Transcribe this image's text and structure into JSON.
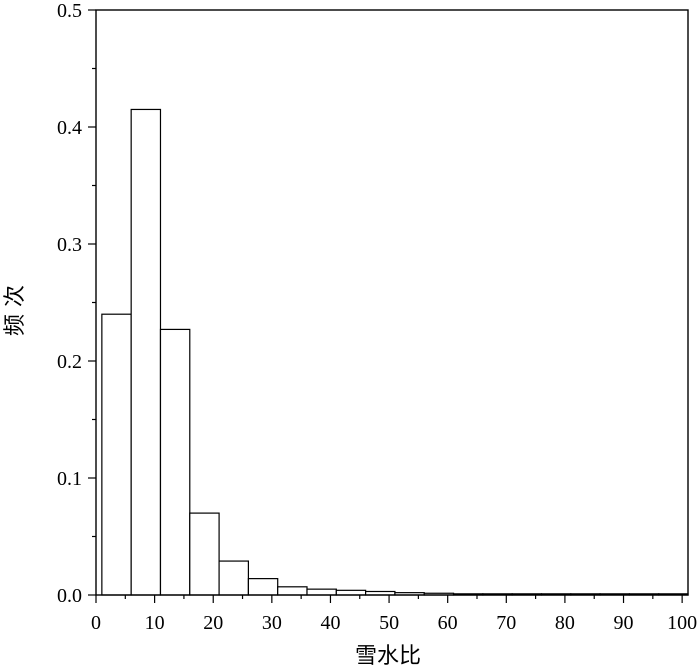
{
  "chart_data": {
    "type": "bar",
    "xlabel": "雪水比",
    "ylabel": "频 次",
    "xlim": [
      0,
      101
    ],
    "ylim": [
      0,
      0.5
    ],
    "grid": false,
    "xticks": [
      "0",
      "10",
      "20",
      "30",
      "40",
      "50",
      "60",
      "70",
      "80",
      "90",
      "100"
    ],
    "yticks": [
      "0.0",
      "0.1",
      "0.2",
      "0.3",
      "0.4",
      "0.5"
    ],
    "bins": [
      {
        "start": 1,
        "end": 6,
        "value": 0.24
      },
      {
        "start": 6,
        "end": 11,
        "value": 0.415
      },
      {
        "start": 11,
        "end": 16,
        "value": 0.227
      },
      {
        "start": 16,
        "end": 21,
        "value": 0.07
      },
      {
        "start": 21,
        "end": 26,
        "value": 0.029
      },
      {
        "start": 26,
        "end": 31,
        "value": 0.014
      },
      {
        "start": 31,
        "end": 36,
        "value": 0.007
      },
      {
        "start": 36,
        "end": 41,
        "value": 0.005
      },
      {
        "start": 41,
        "end": 46,
        "value": 0.004
      },
      {
        "start": 46,
        "end": 51,
        "value": 0.003
      },
      {
        "start": 51,
        "end": 56,
        "value": 0.002
      },
      {
        "start": 56,
        "end": 61,
        "value": 0.0015
      },
      {
        "start": 61,
        "end": 66,
        "value": 0.001
      },
      {
        "start": 66,
        "end": 71,
        "value": 0.001
      },
      {
        "start": 71,
        "end": 76,
        "value": 0.001
      },
      {
        "start": 76,
        "end": 81,
        "value": 0.001
      },
      {
        "start": 81,
        "end": 86,
        "value": 0.001
      },
      {
        "start": 86,
        "end": 91,
        "value": 0.001
      },
      {
        "start": 91,
        "end": 96,
        "value": 0.001
      },
      {
        "start": 96,
        "end": 101,
        "value": 0.001
      }
    ]
  }
}
